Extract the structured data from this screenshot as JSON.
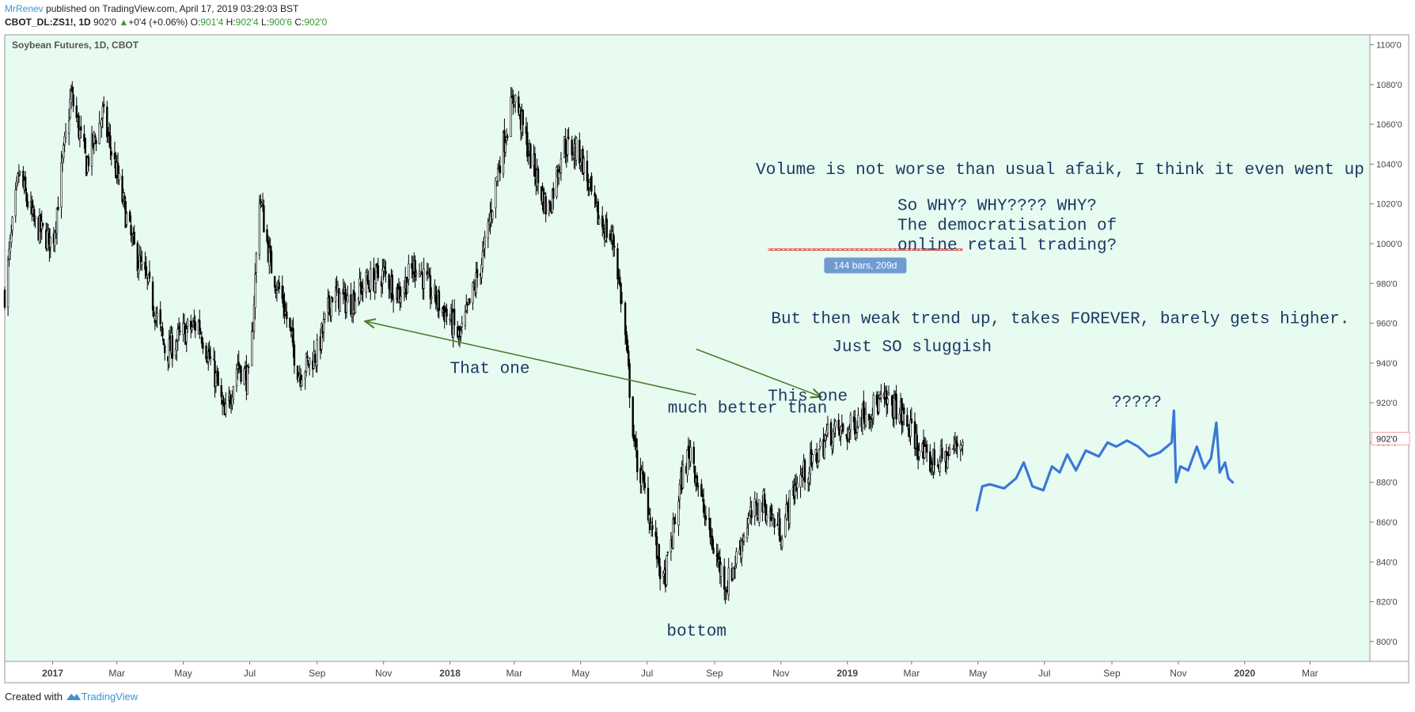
{
  "header": {
    "author": "MrRenev",
    "published_text": "published on TradingView.com, April 17, 2019 03:29:03 BST",
    "symbol": "CBOT_DL:ZS1!, 1D",
    "last": "902'0",
    "change_arrow": "▲",
    "change": "+0'4 (+0.06%)",
    "o_label": "O:",
    "o_value": "901'4",
    "h_label": "H:",
    "h_value": "902'4",
    "l_label": "L:",
    "l_value": "900'6",
    "c_label": "C:",
    "c_value": "902'0"
  },
  "footer": {
    "created_with": "Created with",
    "brand": "TradingView",
    "icon": "tradingview-logo-icon"
  },
  "chart_data": {
    "type": "candlestick",
    "title": "Soybean Futures, 1D, CBOT",
    "background": "#e8fbf1",
    "candle_color": "#000000",
    "annotation_text_color": "#1c3a63",
    "arrow_color": "#4a7f2a",
    "drawing_color": "#3a78d8",
    "measure_color": "#e06060",
    "y_axis": {
      "range": [
        790,
        1105
      ],
      "ticks": [
        800,
        820,
        840,
        860,
        880,
        900,
        920,
        940,
        960,
        980,
        1000,
        1020,
        1040,
        1060,
        1080,
        1100
      ],
      "tick_labels": [
        "800'0",
        "820'0",
        "840'0",
        "860'0",
        "880'0",
        "900'0",
        "920'0",
        "940'0",
        "960'0",
        "980'0",
        "1000'0",
        "1020'0",
        "1040'0",
        "1060'0",
        "1080'0",
        "1100'0"
      ],
      "last_price_label": "902'0",
      "last_price": 902
    },
    "x_axis": {
      "ticks": [
        "2017-01-01",
        "2017-03-01",
        "2017-05-01",
        "2017-07-01",
        "2017-09-01",
        "2017-11-01",
        "2018-01-01",
        "2018-03-01",
        "2018-05-01",
        "2018-07-01",
        "2018-09-01",
        "2018-11-01",
        "2019-01-01",
        "2019-03-01",
        "2019-05-01",
        "2019-07-01",
        "2019-09-01",
        "2019-11-01",
        "2020-01-01",
        "2020-03-01"
      ],
      "labels": [
        "2017",
        "Mar",
        "May",
        "Jul",
        "Sep",
        "Nov",
        "2018",
        "Mar",
        "May",
        "Jul",
        "Sep",
        "Nov",
        "2019",
        "Mar",
        "May",
        "Jul",
        "Sep",
        "Nov",
        "2020",
        "Mar"
      ],
      "bold": [
        true,
        false,
        false,
        false,
        false,
        false,
        true,
        false,
        false,
        false,
        false,
        false,
        true,
        false,
        false,
        false,
        false,
        false,
        true,
        false
      ]
    },
    "price_path": [
      [
        "2016-11-18",
        975
      ],
      [
        "2016-12-01",
        1035
      ],
      [
        "2016-12-15",
        1010
      ],
      [
        "2017-01-01",
        1000
      ],
      [
        "2017-01-18",
        1075
      ],
      [
        "2017-02-01",
        1040
      ],
      [
        "2017-02-16",
        1065
      ],
      [
        "2017-03-01",
        1035
      ],
      [
        "2017-03-15",
        1000
      ],
      [
        "2017-04-01",
        975
      ],
      [
        "2017-04-15",
        945
      ],
      [
        "2017-05-01",
        955
      ],
      [
        "2017-05-15",
        960
      ],
      [
        "2017-06-01",
        930
      ],
      [
        "2017-06-08",
        912
      ],
      [
        "2017-06-20",
        940
      ],
      [
        "2017-07-01",
        930
      ],
      [
        "2017-07-10",
        1025
      ],
      [
        "2017-07-20",
        990
      ],
      [
        "2017-08-01",
        970
      ],
      [
        "2017-08-15",
        935
      ],
      [
        "2017-09-01",
        945
      ],
      [
        "2017-09-15",
        975
      ],
      [
        "2017-10-01",
        970
      ],
      [
        "2017-10-15",
        980
      ],
      [
        "2017-11-01",
        985
      ],
      [
        "2017-11-15",
        975
      ],
      [
        "2017-12-01",
        990
      ],
      [
        "2017-12-15",
        975
      ],
      [
        "2018-01-01",
        962
      ],
      [
        "2018-01-10",
        952
      ],
      [
        "2018-01-22",
        975
      ],
      [
        "2018-02-01",
        995
      ],
      [
        "2018-02-15",
        1040
      ],
      [
        "2018-03-01",
        1075
      ],
      [
        "2018-03-15",
        1045
      ],
      [
        "2018-04-01",
        1015
      ],
      [
        "2018-04-15",
        1050
      ],
      [
        "2018-05-01",
        1045
      ],
      [
        "2018-05-15",
        1015
      ],
      [
        "2018-06-01",
        1000
      ],
      [
        "2018-06-10",
        960
      ],
      [
        "2018-06-20",
        895
      ],
      [
        "2018-07-01",
        870
      ],
      [
        "2018-07-10",
        845
      ],
      [
        "2018-07-16",
        828
      ],
      [
        "2018-07-25",
        855
      ],
      [
        "2018-08-01",
        880
      ],
      [
        "2018-08-10",
        898
      ],
      [
        "2018-08-20",
        870
      ],
      [
        "2018-09-01",
        845
      ],
      [
        "2018-09-12",
        828
      ],
      [
        "2018-09-20",
        840
      ],
      [
        "2018-10-01",
        860
      ],
      [
        "2018-10-15",
        870
      ],
      [
        "2018-11-01",
        855
      ],
      [
        "2018-11-15",
        880
      ],
      [
        "2018-12-01",
        890
      ],
      [
        "2018-12-15",
        905
      ],
      [
        "2019-01-01",
        905
      ],
      [
        "2019-01-15",
        915
      ],
      [
        "2019-02-01",
        920
      ],
      [
        "2019-02-15",
        918
      ],
      [
        "2019-03-01",
        905
      ],
      [
        "2019-03-15",
        890
      ],
      [
        "2019-04-01",
        892
      ],
      [
        "2019-04-17",
        902
      ]
    ],
    "measure_tool": {
      "start": "2018-10-20",
      "end": "2019-04-17",
      "price": 997,
      "label": "144 bars, 209d"
    },
    "arrows": [
      {
        "from": [
          "2018-08-15",
          924
        ],
        "to": [
          "2017-10-15",
          961
        ]
      },
      {
        "from": [
          "2018-08-15",
          947
        ],
        "to": [
          "2018-12-08",
          923
        ]
      }
    ],
    "annotations": [
      {
        "text": "Volume is not worse than usual afaik, I think it even went up",
        "date": "2018-10-09",
        "price": 1035
      },
      {
        "text": "So WHY? WHY???? WHY?",
        "date": "2019-02-16",
        "price": 1017
      },
      {
        "text": "The democratisation of",
        "date": "2019-02-16",
        "price": 1007
      },
      {
        "text": "online retail trading?",
        "date": "2019-02-16",
        "price": 997
      },
      {
        "text": "But then weak trend up, takes FOREVER, barely gets higher.",
        "date": "2018-10-23",
        "price": 960
      },
      {
        "text": "Just SO sluggish",
        "date": "2018-12-18",
        "price": 946
      },
      {
        "text": "That one",
        "date": "2018-01-01",
        "price": 935
      },
      {
        "text": "This one",
        "date": "2018-10-20",
        "price": 921
      },
      {
        "text": "much better than",
        "date": "2018-07-20",
        "price": 915
      },
      {
        "text": "bottom",
        "date": "2018-07-19",
        "price": 803
      },
      {
        "text": "?????",
        "date": "2019-09-01",
        "price": 918
      }
    ],
    "projection_path": [
      [
        "2019-04-30",
        866
      ],
      [
        "2019-05-05",
        878
      ],
      [
        "2019-05-12",
        879
      ],
      [
        "2019-05-25",
        877
      ],
      [
        "2019-06-05",
        882
      ],
      [
        "2019-06-12",
        890
      ],
      [
        "2019-06-20",
        878
      ],
      [
        "2019-06-30",
        876
      ],
      [
        "2019-07-08",
        888
      ],
      [
        "2019-07-15",
        885
      ],
      [
        "2019-07-22",
        894
      ],
      [
        "2019-07-30",
        886
      ],
      [
        "2019-08-08",
        896
      ],
      [
        "2019-08-20",
        893
      ],
      [
        "2019-08-28",
        900
      ],
      [
        "2019-09-05",
        898
      ],
      [
        "2019-09-15",
        901
      ],
      [
        "2019-09-25",
        898
      ],
      [
        "2019-10-05",
        893
      ],
      [
        "2019-10-15",
        895
      ],
      [
        "2019-10-26",
        900
      ],
      [
        "2019-10-28",
        916
      ],
      [
        "2019-10-29",
        897
      ],
      [
        "2019-10-30",
        880
      ],
      [
        "2019-11-03",
        888
      ],
      [
        "2019-11-10",
        886
      ],
      [
        "2019-11-18",
        898
      ],
      [
        "2019-11-25",
        887
      ],
      [
        "2019-12-01",
        892
      ],
      [
        "2019-12-06",
        910
      ],
      [
        "2019-12-09",
        885
      ],
      [
        "2019-12-14",
        890
      ],
      [
        "2019-12-17",
        882
      ],
      [
        "2019-12-21",
        880
      ]
    ]
  }
}
